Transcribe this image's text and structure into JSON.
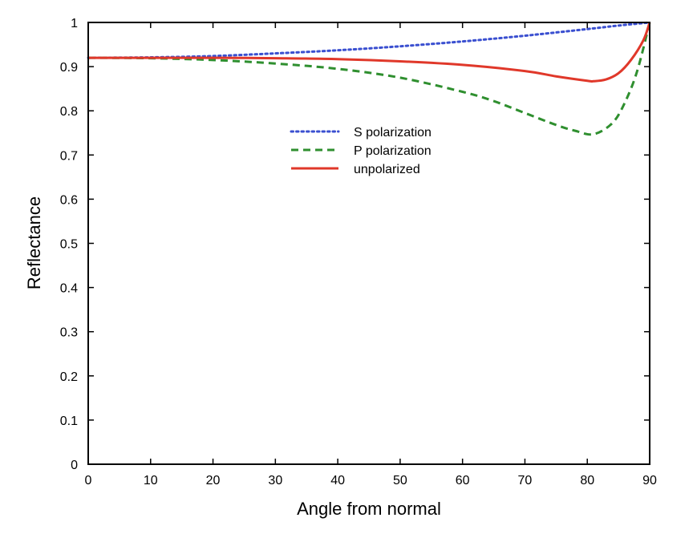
{
  "chart_data": {
    "type": "line",
    "title": "",
    "xlabel": "Angle from normal",
    "ylabel": "Reflectance",
    "xlim": [
      0,
      90
    ],
    "ylim": [
      0,
      1
    ],
    "x_ticks": [
      0,
      10,
      20,
      30,
      40,
      50,
      60,
      70,
      80,
      90
    ],
    "x_tick_labels": [
      "0",
      "10",
      "20",
      "30",
      "40",
      "50",
      "60",
      "70",
      "80",
      "90"
    ],
    "y_ticks": [
      0,
      0.1,
      0.2,
      0.3,
      0.4,
      0.5,
      0.6,
      0.7,
      0.8,
      0.9,
      1
    ],
    "y_tick_labels": [
      "0",
      "0.1",
      "0.2",
      "0.3",
      "0.4",
      "0.5",
      "0.6",
      "0.7",
      "0.8",
      "0.9",
      "1"
    ],
    "grid": false,
    "legend_position": "upper-center",
    "series": [
      {
        "name": "S polarization",
        "color": "#3a4fd0",
        "line_style": "dotted",
        "x": [
          0,
          10,
          20,
          30,
          40,
          50,
          60,
          70,
          80,
          85,
          90
        ],
        "y": [
          0.92,
          0.921,
          0.924,
          0.93,
          0.937,
          0.946,
          0.957,
          0.97,
          0.985,
          0.993,
          1.0
        ]
      },
      {
        "name": "P polarization",
        "color": "#2f8f2f",
        "line_style": "dashed",
        "x": [
          0,
          10,
          20,
          30,
          40,
          50,
          60,
          65,
          70,
          75,
          78,
          81,
          84,
          86,
          88,
          90
        ],
        "y": [
          0.92,
          0.919,
          0.915,
          0.907,
          0.895,
          0.875,
          0.843,
          0.822,
          0.795,
          0.768,
          0.755,
          0.747,
          0.772,
          0.818,
          0.89,
          1.0
        ]
      },
      {
        "name": "unpolarized",
        "color": "#e0382a",
        "line_style": "solid",
        "x": [
          0,
          10,
          20,
          30,
          40,
          50,
          60,
          70,
          75,
          80,
          81,
          83,
          85,
          87,
          89,
          90
        ],
        "y": [
          0.92,
          0.92,
          0.92,
          0.919,
          0.917,
          0.912,
          0.904,
          0.89,
          0.878,
          0.868,
          0.867,
          0.871,
          0.885,
          0.915,
          0.96,
          1.0
        ]
      }
    ]
  }
}
